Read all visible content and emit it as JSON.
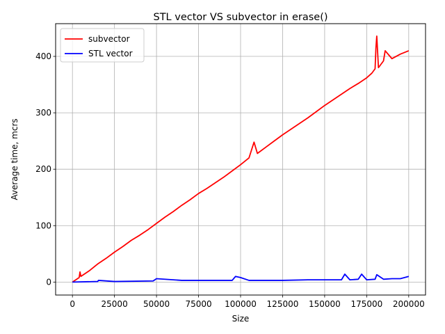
{
  "chart_data": {
    "type": "line",
    "title": "STL vector VS subvector in erase()",
    "xlabel": "Size",
    "ylabel": "Average time, mcrs",
    "xlim": [
      -10000,
      210000
    ],
    "ylim": [
      -23,
      458
    ],
    "xticks": [
      0,
      25000,
      50000,
      75000,
      100000,
      125000,
      150000,
      175000,
      200000
    ],
    "yticks": [
      0,
      100,
      200,
      300,
      400
    ],
    "grid": true,
    "legend_position": "top-left",
    "series": [
      {
        "name": "subvector",
        "color": "#ff0000",
        "x": [
          0,
          4000,
          4500,
          5000,
          10000,
          15000,
          20000,
          25000,
          30000,
          35000,
          40000,
          45000,
          50000,
          55000,
          60000,
          65000,
          70000,
          75000,
          80000,
          85000,
          90000,
          95000,
          100000,
          105000,
          108000,
          110000,
          115000,
          120000,
          125000,
          130000,
          135000,
          140000,
          145000,
          150000,
          155000,
          160000,
          165000,
          170000,
          175000,
          178000,
          180000,
          180500,
          181000,
          182000,
          185000,
          186000,
          190000,
          195000,
          200000
        ],
        "y": [
          0,
          8,
          18,
          10,
          20,
          32,
          42,
          53,
          63,
          74,
          83,
          93,
          104,
          115,
          125,
          136,
          146,
          157,
          166,
          176,
          186,
          197,
          208,
          220,
          248,
          228,
          239,
          250,
          261,
          271,
          281,
          291,
          302,
          313,
          323,
          333,
          343,
          352,
          362,
          370,
          378,
          415,
          436,
          380,
          392,
          410,
          396,
          404,
          410
        ]
      },
      {
        "name": "STL vector",
        "color": "#0000ff",
        "x": [
          0,
          15000,
          15500,
          25000,
          48000,
          50000,
          65000,
          75000,
          85000,
          95000,
          97000,
          100000,
          105000,
          110000,
          125000,
          140000,
          150000,
          160000,
          162000,
          165000,
          170000,
          172000,
          175000,
          180000,
          181000,
          185000,
          190000,
          195000,
          200000
        ],
        "y": [
          0,
          1,
          3,
          1,
          2,
          6,
          3,
          3,
          3,
          3,
          10,
          8,
          3,
          3,
          3,
          4,
          4,
          4,
          14,
          4,
          5,
          14,
          4,
          5,
          13,
          5,
          6,
          6,
          10
        ]
      }
    ]
  }
}
